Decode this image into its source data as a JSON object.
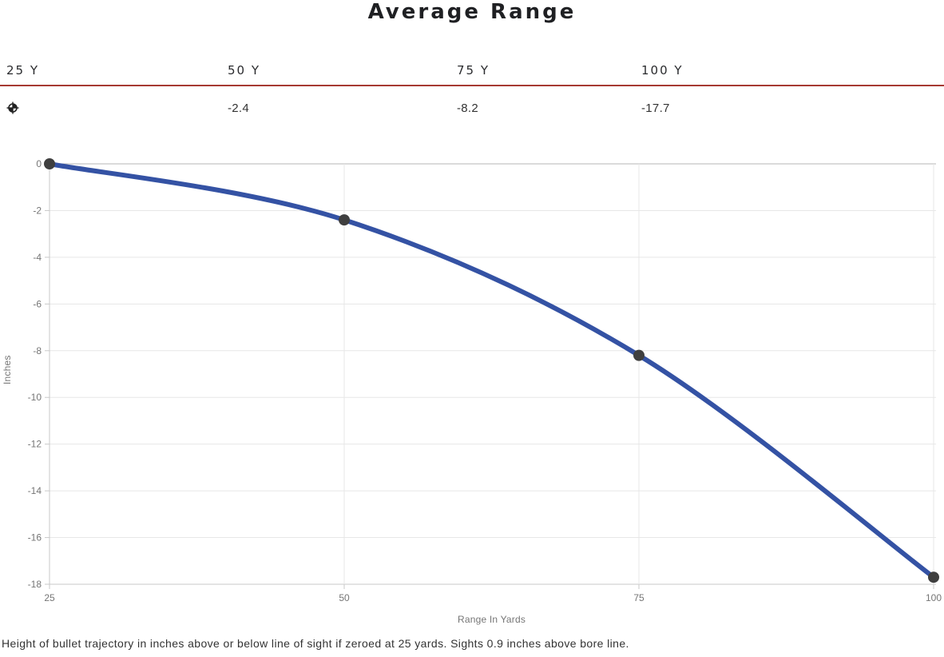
{
  "page": {
    "title": "Average Range",
    "footnote": "Height of bullet trajectory in inches above or below line of sight if zeroed at 25 yards. Sights 0.9 inches above bore line."
  },
  "range_table": {
    "accent_color": "#a63a32",
    "columns": [
      {
        "label": "25 Y",
        "value": "",
        "icon": "zero-crosshair"
      },
      {
        "label": "50 Y",
        "value": "-2.4"
      },
      {
        "label": "75 Y",
        "value": "-8.2"
      },
      {
        "label": "100 Y",
        "value": "-17.7"
      }
    ]
  },
  "chart_data": {
    "type": "line",
    "x": [
      25,
      50,
      75,
      100
    ],
    "values": [
      0,
      -2.4,
      -8.2,
      -17.7
    ],
    "title": "",
    "xlabel": "Range In Yards",
    "ylabel": "Inches",
    "xlim": [
      25,
      100
    ],
    "ylim": [
      -18,
      0
    ],
    "x_ticks": [
      25,
      50,
      75,
      100
    ],
    "y_ticks": [
      0,
      -2,
      -4,
      -6,
      -8,
      -10,
      -12,
      -14,
      -16,
      -18
    ],
    "grid": true,
    "legend": "none",
    "line_color": "#3452a4",
    "marker_color": "#3f3f3f",
    "grid_color": "#e7e7e7",
    "zero_line_color": "#b5b5b5",
    "axis_color": "#c9c9c9",
    "tick_label_color": "#757575"
  }
}
